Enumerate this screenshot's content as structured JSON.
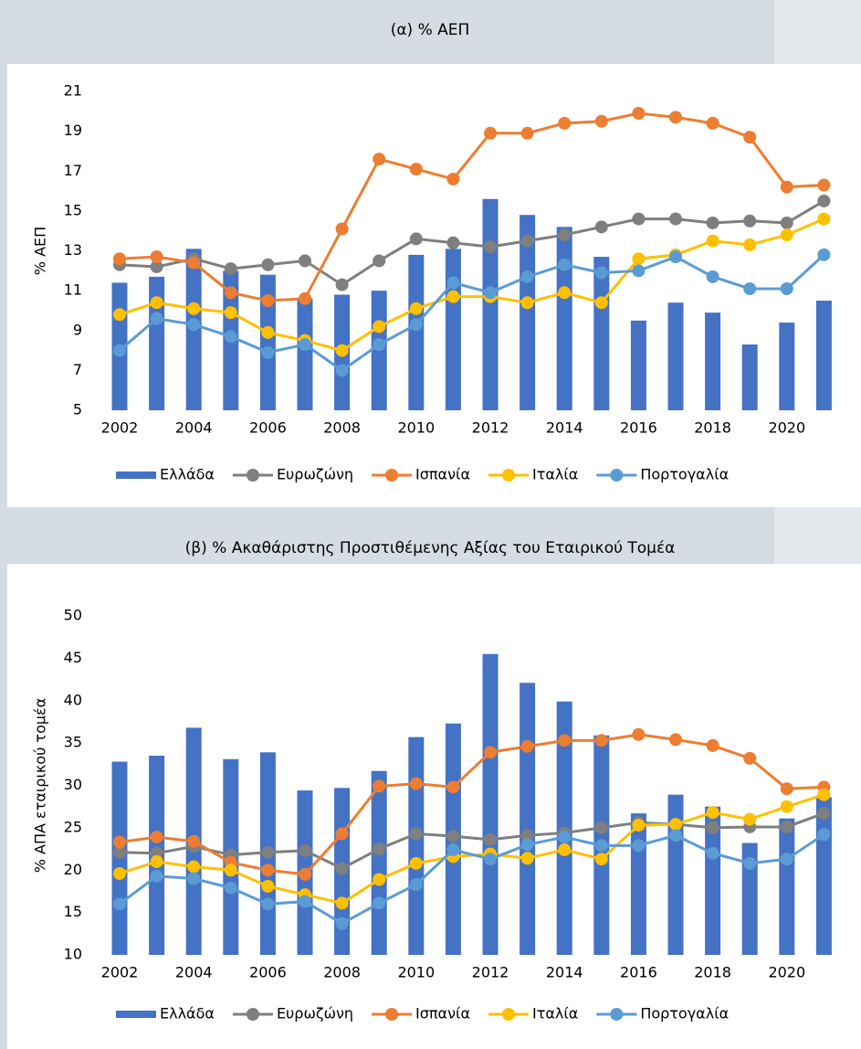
{
  "chart_data": [
    {
      "type": "combo",
      "title": "(α) % ΑΕΠ",
      "y_label": "% ΑΕΠ",
      "categories": [
        "2002",
        null,
        "2004",
        null,
        "2006",
        null,
        "2008",
        null,
        "2010",
        null,
        "2012",
        null,
        "2014",
        null,
        "2016",
        null,
        "2018",
        null,
        "2020",
        null
      ],
      "ylim": [
        5,
        21
      ],
      "yticks": [
        5,
        7,
        9,
        11,
        13,
        15,
        17,
        19,
        21
      ],
      "legend": "bottom",
      "series": [
        {
          "name": "Ελλάδα",
          "type": "bar",
          "color": "#4472c4",
          "values": [
            11.4,
            11.7,
            13.1,
            12.0,
            11.8,
            10.6,
            10.8,
            11.0,
            12.8,
            13.1,
            15.6,
            14.8,
            14.2,
            12.7,
            9.5,
            10.4,
            9.9,
            8.3,
            9.4,
            10.5
          ]
        },
        {
          "name": "Ευρωζώνη",
          "type": "line",
          "color": "#7f7f7f",
          "values": [
            12.3,
            12.2,
            12.6,
            12.1,
            12.3,
            12.5,
            11.3,
            12.5,
            13.6,
            13.4,
            13.2,
            13.5,
            13.8,
            14.2,
            14.6,
            14.6,
            14.4,
            14.5,
            14.4,
            15.5
          ]
        },
        {
          "name": "Ισπανία",
          "type": "line",
          "color": "#ed7d31",
          "values": [
            12.6,
            12.7,
            12.4,
            10.9,
            10.5,
            10.6,
            14.1,
            17.6,
            17.1,
            16.6,
            18.9,
            18.9,
            19.4,
            19.5,
            19.9,
            19.7,
            19.4,
            18.7,
            16.2,
            16.3
          ]
        },
        {
          "name": "Ιταλία",
          "type": "line",
          "color": "#ffc000",
          "values": [
            9.8,
            10.4,
            10.1,
            9.9,
            8.9,
            8.5,
            8.0,
            9.2,
            10.1,
            10.7,
            10.7,
            10.4,
            10.9,
            10.4,
            12.6,
            12.8,
            13.5,
            13.3,
            13.8,
            14.6
          ]
        },
        {
          "name": "Πορτογαλία",
          "type": "line",
          "color": "#5b9bd5",
          "values": [
            8.0,
            9.6,
            9.3,
            8.7,
            7.9,
            8.3,
            7.0,
            8.3,
            9.3,
            11.4,
            10.9,
            11.7,
            12.3,
            11.9,
            12.0,
            12.7,
            11.7,
            11.1,
            11.1,
            12.8
          ]
        }
      ]
    },
    {
      "type": "combo",
      "title": "(β) % Ακαθάριστης Προστιθέμενης Αξίας του Εταιρικού Τομέα",
      "y_label": "% ΑΠΑ εταιρικού τομέα",
      "categories": [
        "2002",
        null,
        "2004",
        null,
        "2006",
        null,
        "2008",
        null,
        "2010",
        null,
        "2012",
        null,
        "2014",
        null,
        "2016",
        null,
        "2018",
        null,
        "2020",
        null
      ],
      "ylim": [
        10,
        50
      ],
      "yticks": [
        10,
        15,
        20,
        25,
        30,
        35,
        40,
        45,
        50
      ],
      "legend": "bottom",
      "series": [
        {
          "name": "Ελλάδα",
          "type": "bar",
          "color": "#4472c4",
          "values": [
            32.8,
            33.5,
            36.8,
            33.1,
            33.9,
            29.4,
            29.7,
            31.7,
            35.7,
            37.3,
            45.5,
            42.1,
            39.9,
            35.9,
            26.7,
            28.9,
            27.5,
            23.2,
            26.1,
            28.6
          ]
        },
        {
          "name": "Ευρωζώνη",
          "type": "line",
          "color": "#7f7f7f",
          "values": [
            22.1,
            22.0,
            22.8,
            21.8,
            22.1,
            22.3,
            20.2,
            22.5,
            24.3,
            24.0,
            23.6,
            24.1,
            24.4,
            25.0,
            25.6,
            25.4,
            25.0,
            25.1,
            25.1,
            26.7
          ]
        },
        {
          "name": "Ισπανία",
          "type": "line",
          "color": "#ed7d31",
          "values": [
            23.3,
            23.9,
            23.4,
            20.9,
            20.0,
            19.5,
            24.3,
            29.9,
            30.2,
            29.8,
            33.9,
            34.6,
            35.3,
            35.3,
            36.0,
            35.4,
            34.7,
            33.2,
            29.6,
            29.8
          ]
        },
        {
          "name": "Ιταλία",
          "type": "line",
          "color": "#ffc000",
          "values": [
            19.6,
            21.0,
            20.4,
            20.0,
            18.1,
            17.1,
            16.1,
            18.9,
            20.8,
            21.6,
            21.9,
            21.4,
            22.4,
            21.3,
            25.3,
            25.4,
            26.8,
            26.0,
            27.5,
            28.9
          ]
        },
        {
          "name": "Πορτογαλία",
          "type": "line",
          "color": "#5b9bd5",
          "values": [
            16.0,
            19.3,
            19.0,
            17.9,
            16.0,
            16.3,
            13.7,
            16.1,
            18.3,
            22.4,
            21.3,
            23.0,
            23.9,
            22.9,
            22.9,
            24.1,
            22.0,
            20.8,
            21.3,
            24.2
          ]
        }
      ]
    }
  ]
}
